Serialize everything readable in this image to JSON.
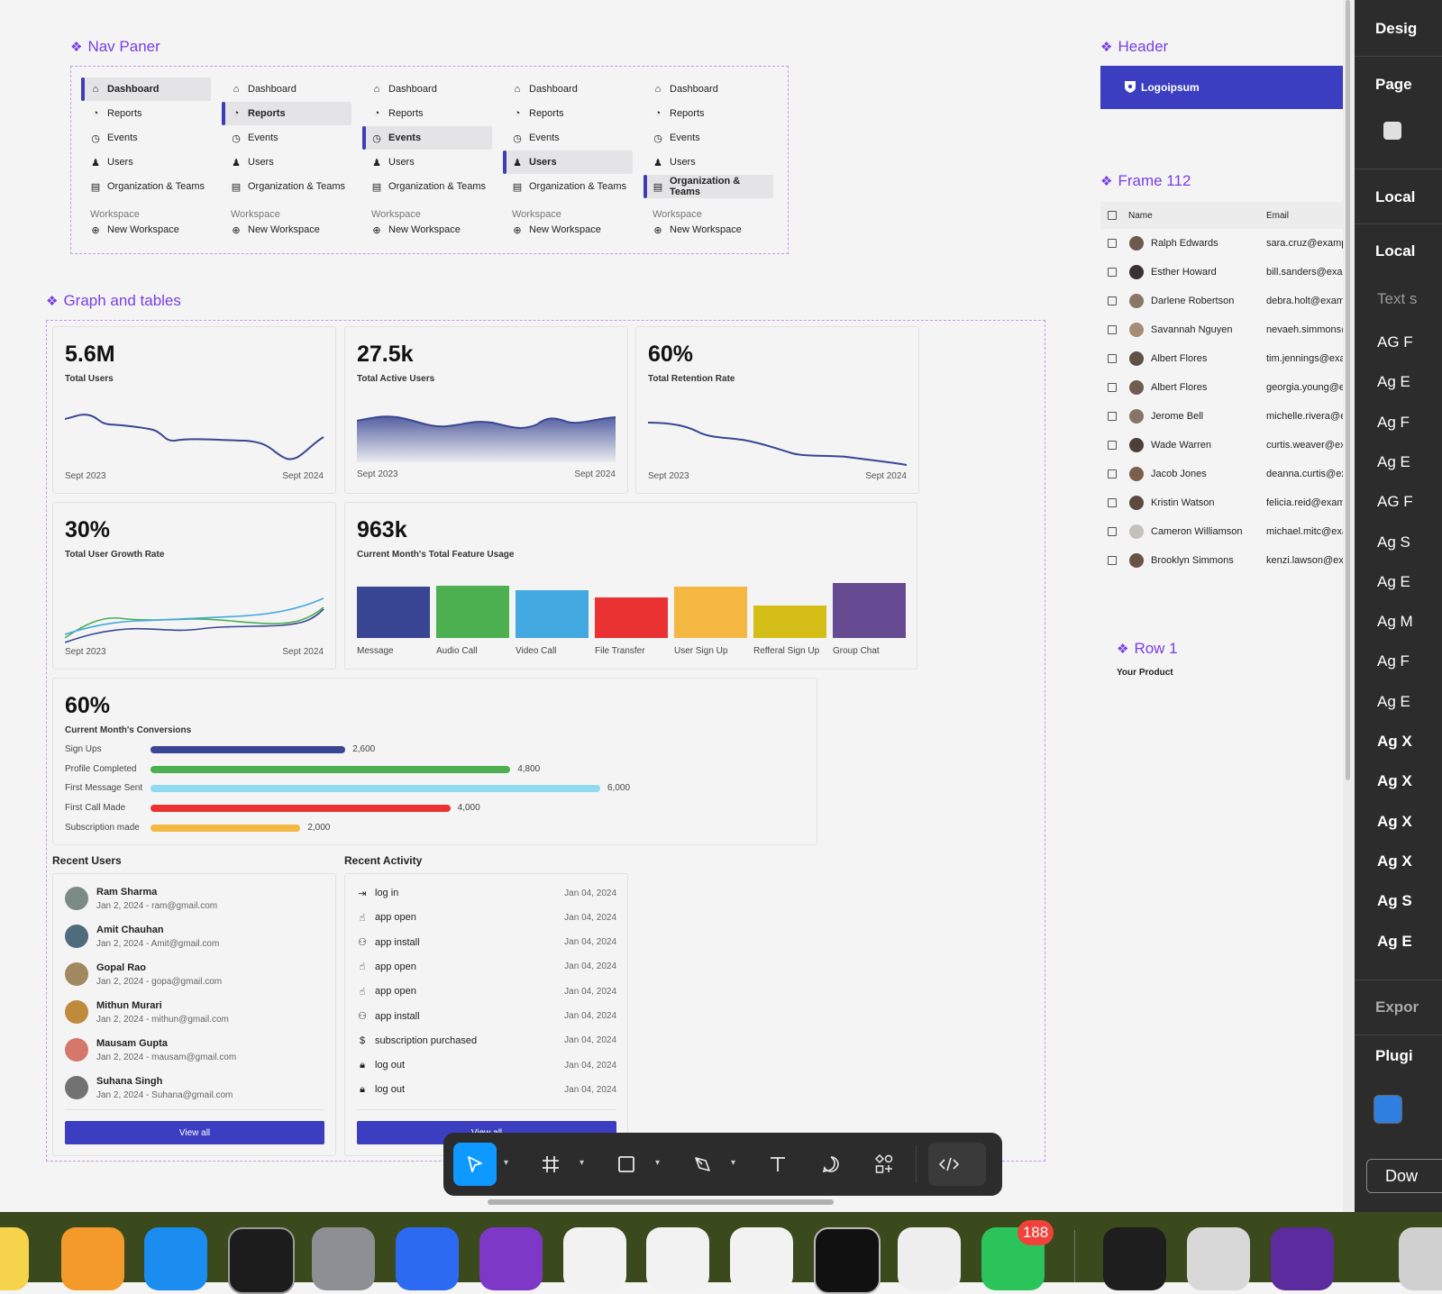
{
  "frames": {
    "nav_paner": "Nav Paner",
    "header": "Header",
    "frame112": "Frame 112",
    "graphs": "Graph and tables",
    "row1": "Row 1"
  },
  "header": {
    "logo_text": "Logoipsum"
  },
  "row1": {
    "label": "Your Product"
  },
  "nav": {
    "items": [
      "Dashboard",
      "Reports",
      "Events",
      "Users",
      "Organization & Teams"
    ],
    "section": "Workspace",
    "new_workspace": "New Workspace"
  },
  "stats": {
    "total_users": {
      "value": "5.6M",
      "label": "Total Users",
      "start": "Sept 2023",
      "end": "Sept 2024"
    },
    "active_users": {
      "value": "27.5k",
      "label": "Total Active Users",
      "start": "Sept 2023",
      "end": "Sept 2024"
    },
    "retention": {
      "value": "60%",
      "label": "Total Retention Rate",
      "start": "Sept 2023",
      "end": "Sept 2024"
    },
    "growth": {
      "value": "30%",
      "label": "Total User Growth Rate",
      "start": "Sept 2023",
      "end": "Sept 2024"
    },
    "feature_usage": {
      "value": "963k",
      "label": "Current Month's Total Feature Usage"
    },
    "conversions": {
      "value": "60%",
      "label": "Current Month's Conversions"
    }
  },
  "chart_data": [
    {
      "type": "bar",
      "categories": [
        "Message",
        "Audio Call",
        "Video Call",
        "File Transfer",
        "User Sign Up",
        "Refferal Sign Up",
        "Group Chat"
      ],
      "values": [
        57,
        58,
        53,
        45,
        57,
        36,
        61
      ],
      "colors": [
        "#394693",
        "#4caf50",
        "#42a8e0",
        "#ea3232",
        "#f4b742",
        "#d4bd17",
        "#674b92"
      ],
      "title": "Current Month's Total Feature Usage"
    },
    {
      "type": "bar",
      "orientation": "horizontal",
      "categories": [
        "Sign Ups",
        "Profile Completed",
        "First Message Sent",
        "First Call Made",
        "Subscription made"
      ],
      "values": [
        2600,
        4800,
        6000,
        4000,
        2000
      ],
      "value_labels": [
        "2,600",
        "4,800",
        "6,000",
        "4,000",
        "2,000"
      ],
      "colors": [
        "#394693",
        "#4caf50",
        "#8fdaf0",
        "#ea3232",
        "#f4b742"
      ],
      "title": "Current Month's Conversions",
      "xlim": [
        0,
        6000
      ]
    }
  ],
  "recent_users": {
    "title": "Recent Users",
    "items": [
      {
        "name": "Ram Sharma",
        "meta": "Jan 2, 2024 - ram@gmail.com"
      },
      {
        "name": "Amit Chauhan",
        "meta": "Jan 2, 2024 - Amit@gmail.com"
      },
      {
        "name": "Gopal Rao",
        "meta": "Jan 2, 2024 - gopa@gmail.com"
      },
      {
        "name": "Mithun Murari",
        "meta": "Jan 2, 2024 - mithun@gmail.com"
      },
      {
        "name": "Mausam Gupta",
        "meta": "Jan 2, 2024 - mausam@gmail.com"
      },
      {
        "name": "Suhana Singh",
        "meta": "Jan 2, 2024 - Suhana@gmail.com"
      }
    ],
    "view_all": "View all"
  },
  "recent_activity": {
    "title": "Recent Activity",
    "items": [
      {
        "icon": "login-icon",
        "label": "log in",
        "date": "Jan 04, 2024"
      },
      {
        "icon": "tap-icon",
        "label": "app open",
        "date": "Jan 04, 2024"
      },
      {
        "icon": "user-plus-icon",
        "label": "app install",
        "date": "Jan 04, 2024"
      },
      {
        "icon": "tap-icon",
        "label": "app open",
        "date": "Jan 04, 2024"
      },
      {
        "icon": "tap-icon",
        "label": "app open",
        "date": "Jan 04, 2024"
      },
      {
        "icon": "user-plus-icon",
        "label": "app install",
        "date": "Jan 04, 2024"
      },
      {
        "icon": "dollar-icon",
        "label": "subscription purchased",
        "date": "Jan 04, 2024"
      },
      {
        "icon": "lock-icon",
        "label": "log out",
        "date": "Jan 04, 2024"
      },
      {
        "icon": "lock-icon",
        "label": "log out",
        "date": "Jan 04, 2024"
      }
    ],
    "view_all": "View all"
  },
  "table": {
    "headers": {
      "name": "Name",
      "email": "Email"
    },
    "rows": [
      {
        "name": "Ralph Edwards",
        "email": "sara.cruz@example."
      },
      {
        "name": "Esther Howard",
        "email": "bill.sanders@examp"
      },
      {
        "name": "Darlene Robertson",
        "email": "debra.holt@exampl"
      },
      {
        "name": "Savannah Nguyen",
        "email": "nevaeh.simmons@e"
      },
      {
        "name": "Albert Flores",
        "email": "tim.jennings@exam"
      },
      {
        "name": "Albert Flores",
        "email": "georgia.young@exa"
      },
      {
        "name": "Jerome Bell",
        "email": "michelle.rivera@exa"
      },
      {
        "name": "Wade Warren",
        "email": "curtis.weaver@exan"
      },
      {
        "name": "Jacob Jones",
        "email": "deanna.curtis@exar"
      },
      {
        "name": "Kristin Watson",
        "email": "felicia.reid@exampl"
      },
      {
        "name": "Cameron Williamson",
        "email": "michael.mitc@exam"
      },
      {
        "name": "Brooklyn Simmons",
        "email": "kenzi.lawson@exam"
      }
    ]
  },
  "right_panel": {
    "design": "Desig",
    "page": "Page",
    "local1": "Local",
    "local2": "Local",
    "text": "Text s",
    "styles": [
      "AG F",
      "Ag E",
      "Ag F",
      "Ag E",
      "AG F",
      "Ag S",
      "Ag E",
      "Ag M",
      "Ag F",
      "Ag E",
      "Ag X",
      "Ag X",
      "Ag X",
      "Ag X",
      "Ag S",
      "Ag E"
    ],
    "export": "Expor",
    "plugins": "Plugi",
    "download": "Dow"
  },
  "dock": {
    "badge": "188"
  }
}
